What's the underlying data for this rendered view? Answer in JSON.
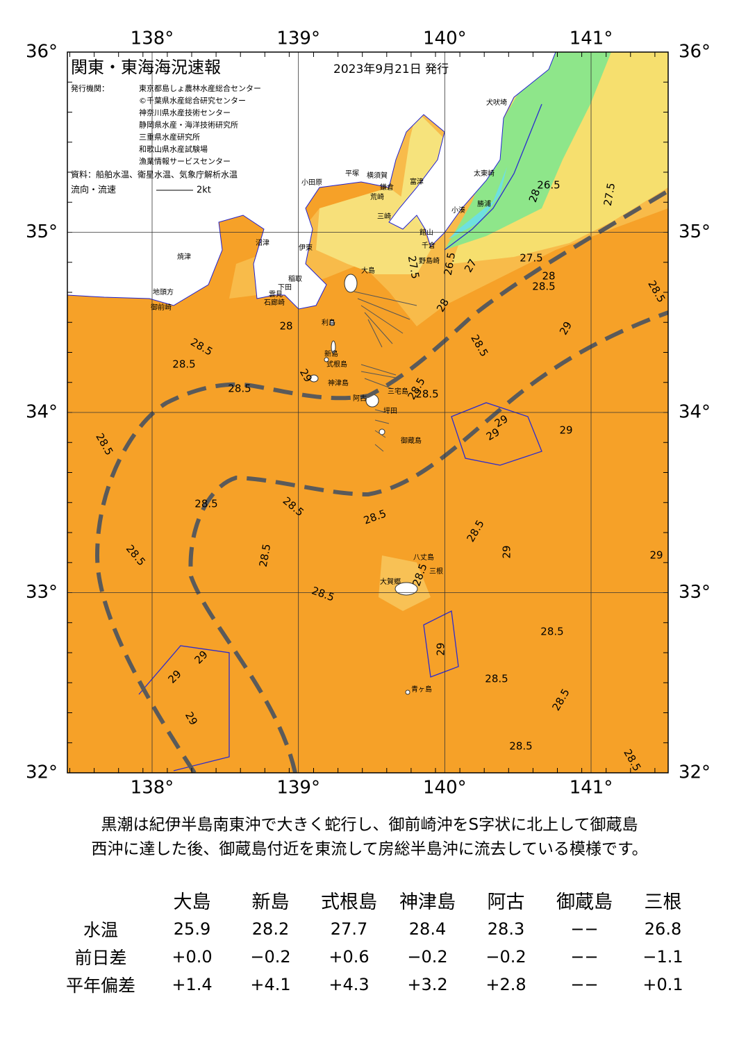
{
  "header": {
    "title": "関東・東海海況速報",
    "date": "2023年9月21日 発行",
    "issuer_label": "発行機関：",
    "issuers": [
      "東京都島しょ農林水産総合センター",
      "©千葉県水産総合研究センター",
      "神奈川県水産技術センター",
      "静岡県水産・海洋技術研究所",
      "三重県水産研究所",
      "和歌山県水産試験場",
      "漁業情報サービスセンター"
    ],
    "source": "資料：船舶水温、衛星水温、気象庁解析水温",
    "flow_label": "流向・流速",
    "flow_scale": "2kt"
  },
  "map": {
    "lon_ticks": [
      {
        "value": 138,
        "label": "138°"
      },
      {
        "value": 139,
        "label": "139°"
      },
      {
        "value": 140,
        "label": "140°"
      },
      {
        "value": 141,
        "label": "141°"
      }
    ],
    "lat_ticks": [
      {
        "value": 36,
        "label": "36°"
      },
      {
        "value": 35,
        "label": "35°"
      },
      {
        "value": 34,
        "label": "34°"
      },
      {
        "value": 33,
        "label": "33°"
      },
      {
        "value": 32,
        "label": "32°"
      }
    ],
    "places": [
      "犬吠埼",
      "太東崎",
      "勝浦",
      "小湊",
      "館山",
      "千倉",
      "野島崎",
      "富津",
      "横須賀",
      "平塚",
      "小田原",
      "鎌倉",
      "荒崎",
      "三崎",
      "焼津",
      "沼津",
      "伊東",
      "稲取",
      "下田",
      "雲見",
      "石廊崎",
      "地頭方",
      "御前崎",
      "大島",
      "利島",
      "新島",
      "式根島",
      "神津島",
      "阿古",
      "三宅島",
      "坪田",
      "御蔵島",
      "八丈島",
      "三根",
      "大賀郷",
      "青ヶ島"
    ],
    "isotherm_labels": [
      26.5,
      28,
      27.5,
      26.5,
      27,
      27.5,
      27.5,
      28,
      28.5,
      28.5,
      28,
      29,
      28.5,
      28,
      28.5,
      28.5,
      29,
      28.5,
      28.5,
      28.5,
      29,
      29,
      29,
      28.5,
      28.5,
      28.5,
      28.5,
      28.5,
      29,
      28.5,
      28.5,
      29,
      28.5,
      28.5,
      28.5,
      29,
      29,
      29,
      28.5,
      28.5,
      29,
      28.5,
      28.5
    ]
  },
  "description": [
    "黒潮は紀伊半島南東沖で大きく蛇行し、御前崎沖をS字状に北上して御蔵島",
    "西沖に達した後、御蔵島付近を東流して房総半島沖に流去している模様です。"
  ],
  "table": {
    "columns": [
      "大島",
      "新島",
      "式根島",
      "神津島",
      "阿古",
      "御蔵島",
      "三根"
    ],
    "rows": [
      {
        "label": "水温",
        "values": [
          "25.9",
          "28.2",
          "27.7",
          "28.4",
          "28.3",
          "−−",
          "26.8"
        ]
      },
      {
        "label": "前日差",
        "values": [
          "+0.0",
          "−0.2",
          "+0.6",
          "−0.2",
          "−0.2",
          "−−",
          "−1.1"
        ]
      },
      {
        "label": "平年偏差",
        "values": [
          "+1.4",
          "+4.1",
          "+4.3",
          "+3.2",
          "+2.8",
          "−−",
          "+0.1"
        ]
      }
    ]
  }
}
